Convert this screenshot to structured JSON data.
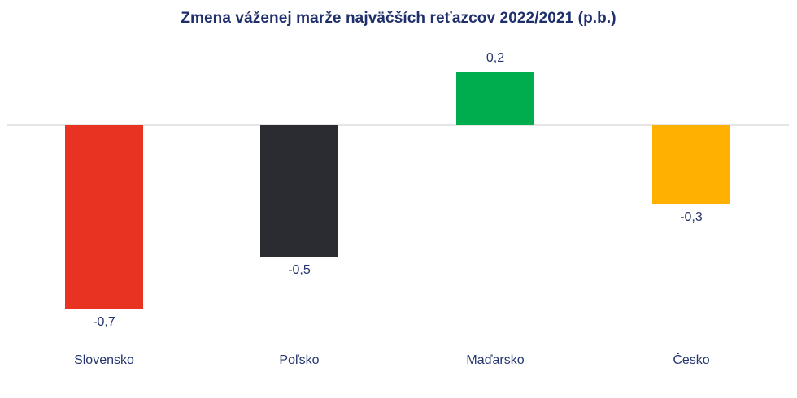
{
  "title": "Zmena váženej marže najväčších reťazcov 2022/2021 (p.b.)",
  "chart_data": {
    "type": "bar",
    "title": "Zmena váženej marže najväčších reťazcov 2022/2021 (p.b.)",
    "xlabel": "",
    "ylabel": "",
    "categories": [
      "Slovensko",
      "Poľsko",
      "Maďarsko",
      "Česko"
    ],
    "values": [
      -0.7,
      -0.5,
      0.2,
      -0.3
    ],
    "value_labels": [
      "-0,7",
      "-0,5",
      "0,2",
      "-0,3"
    ],
    "colors": [
      "#e83323",
      "#2a2c31",
      "#00ad4e",
      "#ffb000"
    ],
    "ylim": [
      -0.9,
      0.35
    ],
    "grid": false,
    "legend": null,
    "zero_line": true
  },
  "colors": {
    "title": "#1f2f6b",
    "text": "#24356f",
    "axis": "#e6e6e6"
  }
}
